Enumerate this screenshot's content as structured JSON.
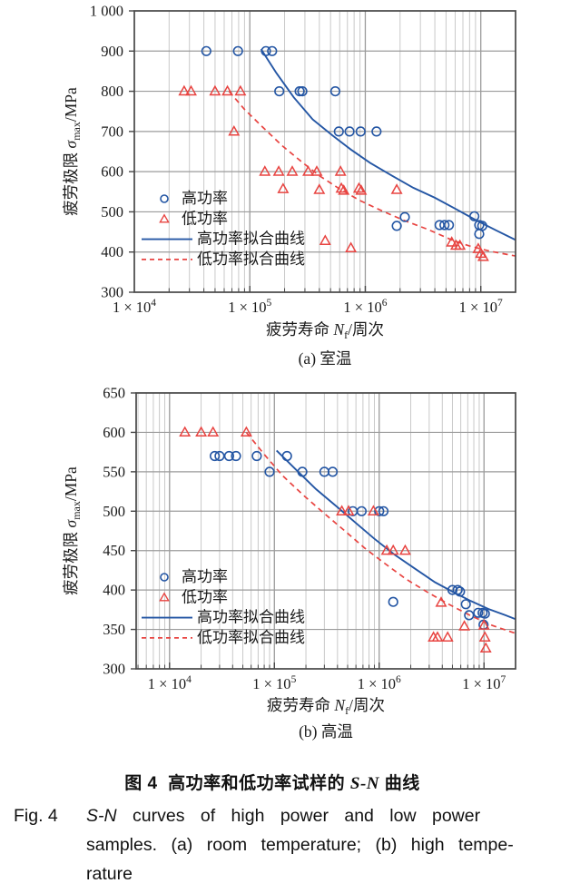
{
  "captions": {
    "cn": {
      "fig_label": "图 4",
      "gap": "  ",
      "text_before_sn": "高功率和低功率试样的 ",
      "sn": "S-N",
      "text_after_sn": " 曲线"
    },
    "en": {
      "fig_label": "Fig. 4",
      "line1_italic": "S-N",
      "line1_rest": " curves of high power and low power",
      "line2": "samples. (a) room temperature; (b) high tempe-",
      "line3": "rature"
    }
  },
  "colors": {
    "high_power": "#2456a4",
    "low_power": "#e84441",
    "grid_minor": "#c9c9c9",
    "grid_major": "#9b9b9b",
    "axis": "#474747",
    "text": "#1a1a1a"
  },
  "chart_data": [
    {
      "id": "a",
      "type": "scatter",
      "panel_label": "(a) 室温",
      "xlabel": {
        "prefix": "疲劳寿命 ",
        "var": "N",
        "sub": "f",
        "suffix": "/周次"
      },
      "ylabel": {
        "prefix": "疲劳极限 ",
        "var": "σ",
        "sub": "max",
        "suffix": "/MPa"
      },
      "x_range": [
        10000,
        20000000
      ],
      "y_range": [
        300,
        1000
      ],
      "x_ticks": [
        {
          "v": 10000,
          "base": "1 × 10",
          "exp": "4"
        },
        {
          "v": 100000,
          "base": "1 × 10",
          "exp": "5"
        },
        {
          "v": 1000000,
          "base": "1 × 10",
          "exp": "6"
        },
        {
          "v": 10000000,
          "base": "1 × 10",
          "exp": "7"
        }
      ],
      "y_ticks": [
        {
          "v": 300,
          "label": "300"
        },
        {
          "v": 400,
          "label": "400"
        },
        {
          "v": 500,
          "label": "500"
        },
        {
          "v": 600,
          "label": "600"
        },
        {
          "v": 700,
          "label": "700"
        },
        {
          "v": 800,
          "label": "800"
        },
        {
          "v": 900,
          "label": "900"
        },
        {
          "v": 1000,
          "label": "1 000"
        }
      ],
      "legend": [
        {
          "label": "高功率",
          "marker": "circle"
        },
        {
          "label": "低功率",
          "marker": "triangle"
        },
        {
          "label": "高功率拟合曲线",
          "marker": "line"
        },
        {
          "label": "低功率拟合曲线",
          "marker": "dashline"
        }
      ],
      "series": {
        "high_power": [
          [
            42000,
            900
          ],
          [
            79000,
            900
          ],
          [
            138000,
            900
          ],
          [
            156000,
            900
          ],
          [
            180000,
            800
          ],
          [
            270000,
            800
          ],
          [
            285000,
            800
          ],
          [
            550000,
            800
          ],
          [
            590000,
            700
          ],
          [
            730000,
            700
          ],
          [
            910000,
            700
          ],
          [
            1250000,
            700
          ],
          [
            1870000,
            465
          ],
          [
            2200000,
            487
          ],
          [
            4400000,
            467
          ],
          [
            4850000,
            467
          ],
          [
            5300000,
            467
          ],
          [
            8800000,
            489
          ],
          [
            9700000,
            467
          ],
          [
            10300000,
            465
          ],
          [
            9700000,
            445
          ]
        ],
        "low_power": [
          [
            27000,
            800
          ],
          [
            31000,
            800
          ],
          [
            50000,
            800
          ],
          [
            64000,
            800
          ],
          [
            83000,
            800
          ],
          [
            73000,
            700
          ],
          [
            135000,
            600
          ],
          [
            178000,
            600
          ],
          [
            233000,
            600
          ],
          [
            320000,
            600
          ],
          [
            380000,
            600
          ],
          [
            610000,
            600
          ],
          [
            194000,
            557
          ],
          [
            400000,
            555
          ],
          [
            620000,
            558
          ],
          [
            650000,
            553
          ],
          [
            880000,
            558
          ],
          [
            920000,
            553
          ],
          [
            1870000,
            555
          ],
          [
            450000,
            428
          ],
          [
            750000,
            410
          ],
          [
            5600000,
            424
          ],
          [
            6100000,
            416
          ],
          [
            6600000,
            416
          ],
          [
            9500000,
            408
          ],
          [
            10000000,
            396
          ],
          [
            10500000,
            388
          ]
        ],
        "high_power_fit": [
          [
            125000,
            905
          ],
          [
            170000,
            845
          ],
          [
            240000,
            785
          ],
          [
            350000,
            730
          ],
          [
            520000,
            690
          ],
          [
            750000,
            655
          ],
          [
            1100000,
            622
          ],
          [
            1700000,
            590
          ],
          [
            2600000,
            560
          ],
          [
            4000000,
            535
          ],
          [
            6000000,
            508
          ],
          [
            9000000,
            480
          ],
          [
            14000000,
            452
          ],
          [
            20000000,
            430
          ]
        ],
        "low_power_fit": [
          [
            66000,
            800
          ],
          [
            90000,
            755
          ],
          [
            130000,
            710
          ],
          [
            190000,
            665
          ],
          [
            280000,
            625
          ],
          [
            400000,
            590
          ],
          [
            600000,
            557
          ],
          [
            900000,
            528
          ],
          [
            1400000,
            502
          ],
          [
            2200000,
            478
          ],
          [
            3500000,
            456
          ],
          [
            5600000,
            430
          ],
          [
            8000000,
            415
          ],
          [
            12000000,
            402
          ],
          [
            20000000,
            390
          ]
        ]
      }
    },
    {
      "id": "b",
      "type": "scatter",
      "panel_label": "(b) 高温",
      "xlabel": {
        "prefix": "疲劳寿命 ",
        "var": "N",
        "sub": "f",
        "suffix": "/周次"
      },
      "ylabel": {
        "prefix": "疲劳极限 ",
        "var": "σ",
        "sub": "max",
        "suffix": "/MPa"
      },
      "x_range": [
        4800,
        20000000
      ],
      "y_range": [
        300,
        650
      ],
      "x_ticks": [
        {
          "v": 10000,
          "base": "1 × 10",
          "exp": "4"
        },
        {
          "v": 100000,
          "base": "1 × 10",
          "exp": "5"
        },
        {
          "v": 1000000,
          "base": "1 × 10",
          "exp": "6"
        },
        {
          "v": 10000000,
          "base": "1 × 10",
          "exp": "7"
        }
      ],
      "y_ticks": [
        {
          "v": 300,
          "label": "300"
        },
        {
          "v": 350,
          "label": "350"
        },
        {
          "v": 400,
          "label": "400"
        },
        {
          "v": 450,
          "label": "450"
        },
        {
          "v": 500,
          "label": "500"
        },
        {
          "v": 550,
          "label": "550"
        },
        {
          "v": 600,
          "label": "600"
        },
        {
          "v": 650,
          "label": "650"
        }
      ],
      "legend": [
        {
          "label": "高功率",
          "marker": "circle"
        },
        {
          "label": "低功率",
          "marker": "triangle"
        },
        {
          "label": "高功率拟合曲线",
          "marker": "line"
        },
        {
          "label": "低功率拟合曲线",
          "marker": "dashline"
        }
      ],
      "series": {
        "high_power": [
          [
            27000,
            570
          ],
          [
            30000,
            570
          ],
          [
            37000,
            570
          ],
          [
            43000,
            570
          ],
          [
            68000,
            570
          ],
          [
            132000,
            570
          ],
          [
            90000,
            550
          ],
          [
            185000,
            550
          ],
          [
            300000,
            550
          ],
          [
            360000,
            550
          ],
          [
            560000,
            500
          ],
          [
            680000,
            500
          ],
          [
            1000000,
            500
          ],
          [
            1100000,
            500
          ],
          [
            1360000,
            385
          ],
          [
            5000000,
            400
          ],
          [
            5600000,
            400
          ],
          [
            5900000,
            398
          ],
          [
            6700000,
            382
          ],
          [
            7200000,
            368
          ],
          [
            8800000,
            371
          ],
          [
            9700000,
            371
          ],
          [
            10200000,
            370
          ],
          [
            9900000,
            356
          ]
        ],
        "low_power": [
          [
            14000,
            600
          ],
          [
            20000,
            600
          ],
          [
            26000,
            600
          ],
          [
            54000,
            600
          ],
          [
            440000,
            500
          ],
          [
            510000,
            500
          ],
          [
            880000,
            500
          ],
          [
            1180000,
            450
          ],
          [
            1360000,
            450
          ],
          [
            1770000,
            450
          ],
          [
            3900000,
            384
          ],
          [
            3300000,
            340
          ],
          [
            3600000,
            340
          ],
          [
            4500000,
            340
          ],
          [
            6500000,
            354
          ],
          [
            10000000,
            355
          ],
          [
            10200000,
            340
          ],
          [
            10400000,
            326
          ]
        ],
        "high_power_fit": [
          [
            105000,
            577
          ],
          [
            160000,
            553
          ],
          [
            250000,
            528
          ],
          [
            400000,
            505
          ],
          [
            600000,
            485
          ],
          [
            900000,
            465
          ],
          [
            1400000,
            445
          ],
          [
            2200000,
            427
          ],
          [
            3400000,
            410
          ],
          [
            5000000,
            398
          ],
          [
            7500000,
            386
          ],
          [
            11000000,
            376
          ],
          [
            16000000,
            368
          ],
          [
            20000000,
            363
          ]
        ],
        "low_power_fit": [
          [
            54000,
            600
          ],
          [
            80000,
            572
          ],
          [
            120000,
            545
          ],
          [
            190000,
            520
          ],
          [
            300000,
            497
          ],
          [
            470000,
            475
          ],
          [
            730000,
            453
          ],
          [
            1150000,
            433
          ],
          [
            1800000,
            414
          ],
          [
            2900000,
            397
          ],
          [
            4600000,
            382
          ],
          [
            7300000,
            368
          ],
          [
            12000000,
            355
          ],
          [
            20000000,
            345
          ]
        ]
      }
    }
  ]
}
